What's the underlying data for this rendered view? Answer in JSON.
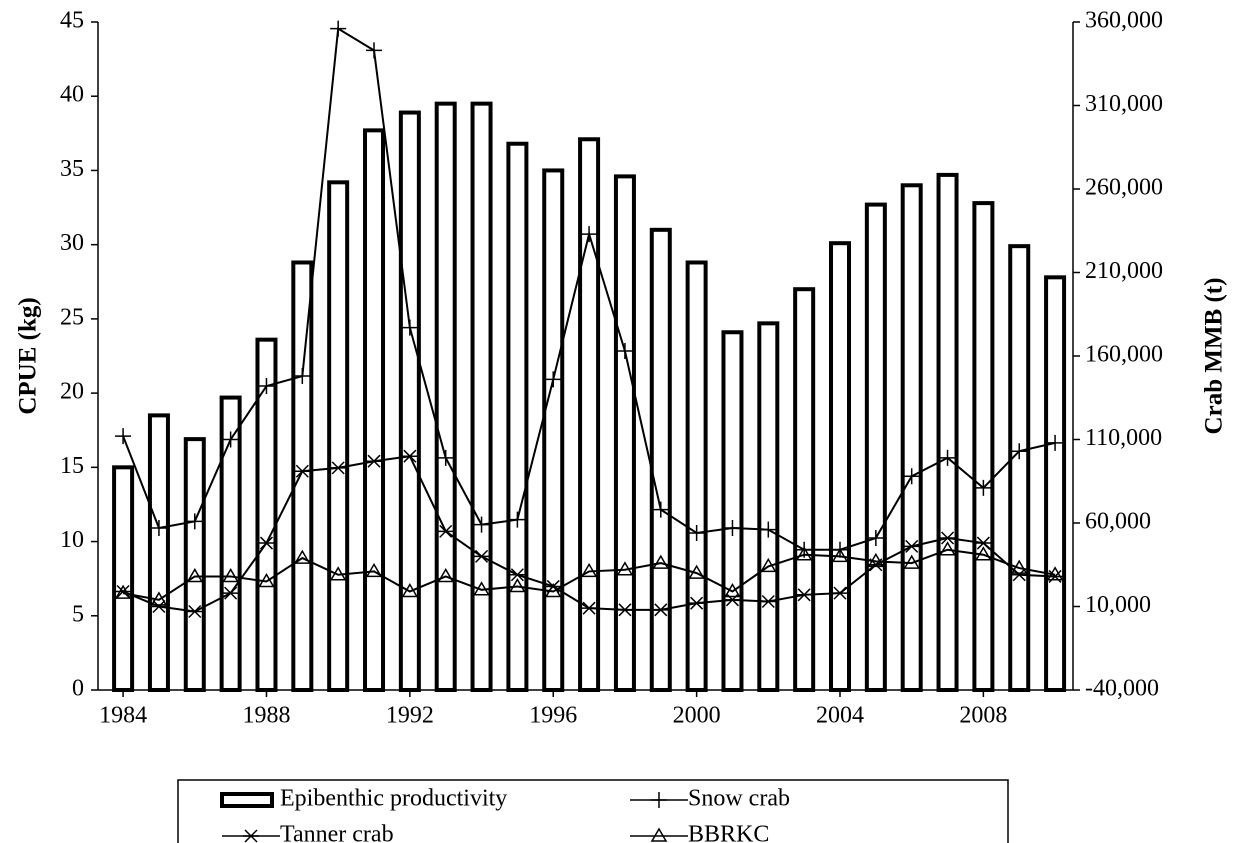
{
  "chart_data": {
    "type": "combo",
    "x": [
      1984,
      1985,
      1986,
      1987,
      1988,
      1989,
      1990,
      1991,
      1992,
      1993,
      1994,
      1995,
      1996,
      1997,
      1998,
      1999,
      2000,
      2001,
      2002,
      2003,
      2004,
      2005,
      2006,
      2007,
      2008,
      2009,
      2010
    ],
    "xlim": [
      1983.3,
      2010.5
    ],
    "xticks": [
      1984,
      1988,
      1992,
      1996,
      2000,
      2004,
      2008
    ],
    "ylabel": "CPUE (kg)",
    "ylim": [
      0,
      45
    ],
    "yticks": [
      0,
      5,
      10,
      15,
      20,
      25,
      30,
      35,
      40,
      45
    ],
    "y2label": "Crab MMB (t)",
    "y2lim": [
      -40000,
      360000
    ],
    "y2ticks": [
      {
        "value": -40000,
        "label": "-40,000"
      },
      {
        "value": 10000,
        "label": "10,000"
      },
      {
        "value": 60000,
        "label": "60,000"
      },
      {
        "value": 110000,
        "label": "110,000"
      },
      {
        "value": 160000,
        "label": "160,000"
      },
      {
        "value": 210000,
        "label": "210,000"
      },
      {
        "value": 260000,
        "label": "260,000"
      },
      {
        "value": 310000,
        "label": "310,000"
      },
      {
        "value": 360000,
        "label": "360,000"
      }
    ],
    "series": [
      {
        "name": "Epibenthic productivity",
        "type": "bar",
        "color": "#000000",
        "values": [
          15.0,
          18.5,
          16.9,
          19.7,
          23.6,
          28.8,
          34.2,
          37.7,
          38.9,
          39.5,
          39.5,
          36.8,
          35.0,
          37.1,
          34.6,
          31.0,
          28.8,
          24.1,
          24.7,
          27.0,
          30.1,
          32.7,
          34.0,
          34.7,
          32.8,
          29.9,
          27.8
        ]
      },
      {
        "name": "Snow crab",
        "type": "line",
        "marker": "plus",
        "axis": "y2",
        "color": "#000000",
        "values": [
          112000,
          57000,
          61000,
          110000,
          142000,
          148000,
          356000,
          343000,
          177000,
          99000,
          59000,
          62000,
          146000,
          233000,
          163000,
          68000,
          54000,
          57000,
          56000,
          44000,
          44000,
          51000,
          88000,
          99000,
          81000,
          103000,
          108000
        ]
      },
      {
        "name": "Tanner crab",
        "type": "line",
        "marker": "asterisk",
        "axis": "y2",
        "color": "#000000",
        "values": [
          19000,
          10000,
          7000,
          18000,
          48000,
          91000,
          93000,
          97000,
          100000,
          55000,
          40000,
          29000,
          22000,
          9000,
          8000,
          8000,
          12000,
          14000,
          13000,
          17000,
          18000,
          35000,
          46000,
          51000,
          48000,
          29000,
          28000
        ]
      },
      {
        "name": "BBRKC",
        "type": "line",
        "marker": "triangle",
        "axis": "y2",
        "color": "#000000",
        "values": [
          18000,
          14000,
          28000,
          28000,
          25000,
          39000,
          29000,
          31000,
          19000,
          28000,
          20000,
          22000,
          19000,
          31000,
          32000,
          36000,
          30000,
          19000,
          34000,
          41000,
          40000,
          37000,
          36000,
          44000,
          41000,
          33000,
          29000
        ]
      }
    ]
  }
}
